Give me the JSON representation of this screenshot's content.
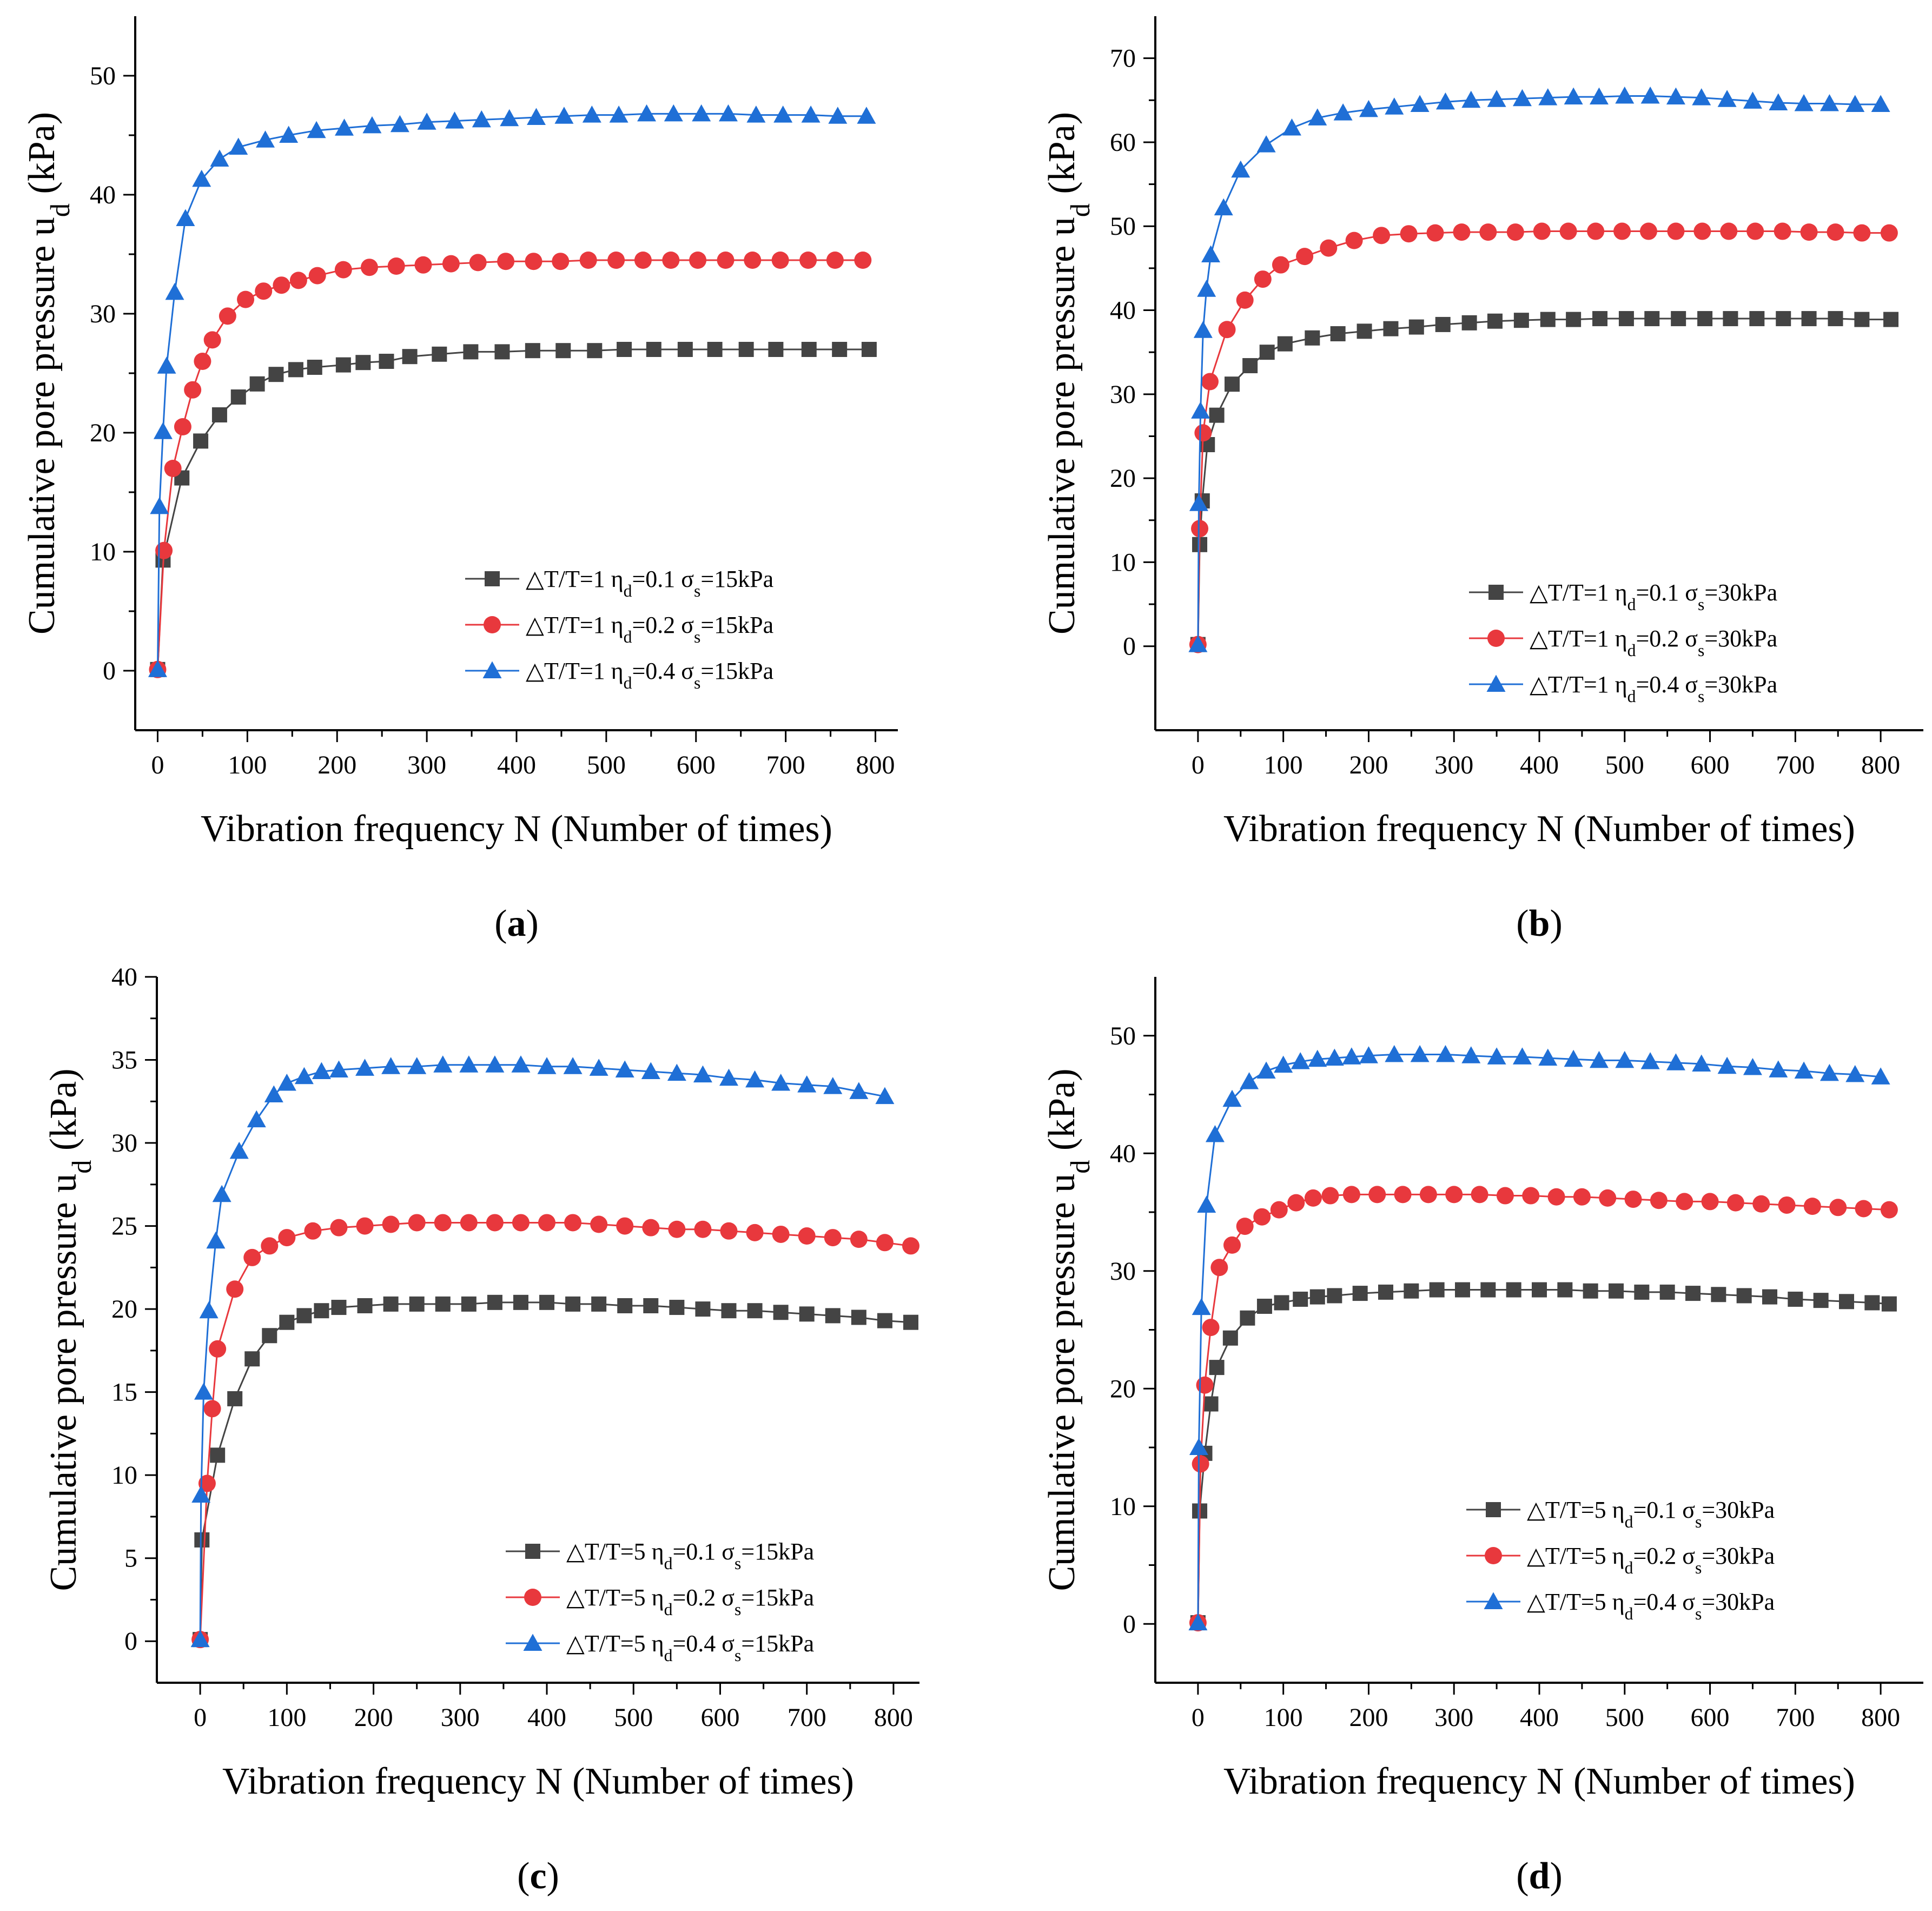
{
  "chart_data": [
    {
      "panel": "a",
      "type": "line",
      "xlabel": "Vibration frequency N (Number of times)",
      "ylabel": "Cumulative pore pressure u",
      "ylabel_sub": "d",
      "ylabel_unit": " (kPa)",
      "xlim": [
        -25,
        825
      ],
      "ylim": [
        -5,
        55
      ],
      "xticks": [
        0,
        100,
        200,
        300,
        400,
        500,
        600,
        700,
        800
      ],
      "yticks": [
        0,
        10,
        20,
        30,
        40,
        50
      ],
      "legend_position": "bottom-right",
      "series": [
        {
          "legend": {
            "pre": "△T/T=1 η",
            "sub1": "d",
            "mid": "=0.1 σ",
            "sub2": "s",
            "post": "=15kPa"
          },
          "marker": "square",
          "color": "#444444",
          "x": [
            0,
            6,
            27,
            48,
            69,
            90,
            111,
            132,
            154,
            175,
            207,
            229,
            255,
            281,
            314,
            349,
            384,
            418,
            452,
            487,
            520,
            553,
            588,
            621,
            656,
            689,
            726,
            760,
            793
          ],
          "y": [
            0.1,
            9.3,
            16.2,
            19.3,
            21.5,
            23.0,
            24.1,
            24.9,
            25.3,
            25.5,
            25.7,
            25.9,
            26.0,
            26.4,
            26.6,
            26.8,
            26.8,
            26.9,
            26.9,
            26.9,
            27.0,
            27.0,
            27.0,
            27.0,
            27.0,
            27.0,
            27.0,
            27.0,
            27.0
          ]
        },
        {
          "legend": {
            "pre": "△T/T=1 η",
            "sub1": "d",
            "mid": "=0.2 σ",
            "sub2": "s",
            "post": "=15kPa"
          },
          "marker": "circle",
          "color": "#e8383d",
          "x": [
            0,
            7,
            17,
            28,
            39,
            50,
            61,
            78,
            98,
            118,
            138,
            157,
            178,
            207,
            236,
            266,
            296,
            327,
            357,
            388,
            419,
            449,
            480,
            511,
            541,
            572,
            602,
            633,
            663,
            694,
            725,
            755,
            786
          ],
          "y": [
            0.1,
            10.1,
            17.0,
            20.5,
            23.6,
            26.0,
            27.8,
            29.8,
            31.2,
            31.9,
            32.4,
            32.8,
            33.2,
            33.7,
            33.9,
            34.0,
            34.1,
            34.2,
            34.3,
            34.4,
            34.4,
            34.4,
            34.5,
            34.5,
            34.5,
            34.5,
            34.5,
            34.5,
            34.5,
            34.5,
            34.5,
            34.5,
            34.5
          ]
        },
        {
          "legend": {
            "pre": "△T/T=1 η",
            "sub1": "d",
            "mid": "=0.4 σ",
            "sub2": "s",
            "post": "=15kPa"
          },
          "marker": "triangle",
          "color": "#1f6fd6",
          "x": [
            0,
            2,
            6,
            10,
            19,
            31,
            49,
            69,
            90,
            120,
            146,
            177,
            208,
            239,
            270,
            300,
            331,
            361,
            392,
            422,
            453,
            484,
            514,
            545,
            575,
            606,
            636,
            667,
            697,
            728,
            758,
            790
          ],
          "y": [
            0.1,
            13.8,
            20.1,
            25.6,
            31.8,
            38.0,
            41.3,
            43.0,
            44.0,
            44.6,
            45.0,
            45.4,
            45.6,
            45.8,
            45.9,
            46.1,
            46.2,
            46.3,
            46.4,
            46.5,
            46.6,
            46.7,
            46.7,
            46.8,
            46.8,
            46.8,
            46.8,
            46.7,
            46.7,
            46.7,
            46.6,
            46.6
          ]
        }
      ],
      "panel_label": "a"
    },
    {
      "panel": "b",
      "type": "line",
      "xlabel": "Vibration frequency N (Number of times)",
      "ylabel": "Cumulative pore pressure u",
      "ylabel_sub": "d",
      "ylabel_unit": " (kPa)",
      "xlim": [
        -50,
        850
      ],
      "ylim": [
        -10,
        75
      ],
      "xticks": [
        0,
        100,
        200,
        300,
        400,
        500,
        600,
        700,
        800
      ],
      "yticks": [
        0,
        10,
        20,
        30,
        40,
        50,
        60,
        70
      ],
      "legend_position": "bottom-right",
      "series": [
        {
          "legend": {
            "pre": "△T/T=1 η",
            "sub1": "d",
            "mid": "=0.1 σ",
            "sub2": "s",
            "post": "=30kPa"
          },
          "marker": "square",
          "color": "#444444",
          "x": [
            0,
            2,
            5,
            11,
            22,
            40,
            61,
            81,
            102,
            134,
            164,
            195,
            226,
            256,
            287,
            318,
            348,
            379,
            410,
            440,
            471,
            502,
            532,
            563,
            594,
            624,
            655,
            686,
            716,
            747,
            778,
            812
          ],
          "y": [
            0.2,
            12.1,
            17.3,
            24.0,
            27.5,
            31.2,
            33.4,
            35.0,
            36.0,
            36.7,
            37.2,
            37.5,
            37.8,
            38.0,
            38.3,
            38.5,
            38.7,
            38.8,
            38.9,
            38.9,
            39.0,
            39.0,
            39.0,
            39.0,
            39.0,
            39.0,
            39.0,
            39.0,
            39.0,
            39.0,
            38.9,
            38.9
          ]
        },
        {
          "legend": {
            "pre": "△T/T=1 η",
            "sub1": "d",
            "mid": "=0.2 σ",
            "sub2": "s",
            "post": "=30kPa"
          },
          "marker": "circle",
          "color": "#e8383d",
          "x": [
            0,
            2,
            6,
            14,
            34,
            55,
            76,
            97,
            125,
            153,
            183,
            215,
            247,
            278,
            309,
            340,
            372,
            403,
            434,
            466,
            497,
            528,
            560,
            591,
            622,
            653,
            685,
            716,
            747,
            778,
            810
          ],
          "y": [
            0.2,
            14.0,
            25.4,
            31.5,
            37.7,
            41.2,
            43.7,
            45.4,
            46.4,
            47.4,
            48.3,
            48.9,
            49.1,
            49.2,
            49.3,
            49.3,
            49.3,
            49.4,
            49.4,
            49.4,
            49.4,
            49.4,
            49.4,
            49.4,
            49.4,
            49.4,
            49.4,
            49.3,
            49.3,
            49.2,
            49.2
          ]
        },
        {
          "legend": {
            "pre": "△T/T=1 η",
            "sub1": "d",
            "mid": "=0.4 σ",
            "sub2": "s",
            "post": "=30kPa"
          },
          "marker": "triangle",
          "color": "#1f6fd6",
          "x": [
            0,
            1,
            3,
            6,
            10,
            15,
            30,
            50,
            80,
            110,
            140,
            170,
            200,
            230,
            260,
            290,
            320,
            350,
            380,
            410,
            440,
            470,
            500,
            530,
            560,
            590,
            620,
            650,
            680,
            710,
            740,
            770,
            800
          ],
          "y": [
            0.2,
            17.0,
            28.0,
            37.6,
            42.5,
            46.6,
            52.2,
            56.7,
            59.7,
            61.7,
            62.9,
            63.5,
            63.9,
            64.2,
            64.5,
            64.8,
            65.0,
            65.1,
            65.2,
            65.3,
            65.4,
            65.4,
            65.5,
            65.5,
            65.4,
            65.3,
            65.1,
            64.9,
            64.7,
            64.6,
            64.6,
            64.5,
            64.5
          ]
        }
      ],
      "panel_label": "b"
    },
    {
      "panel": "c",
      "type": "line",
      "xlabel": "Vibration frequency N (Number of times)",
      "ylabel": "Cumulative pore pressure u",
      "ylabel_sub": "d",
      "ylabel_unit": " (kPa)",
      "xlim": [
        -50,
        830
      ],
      "ylim": [
        -2.5,
        40
      ],
      "xticks": [
        0,
        100,
        200,
        300,
        400,
        500,
        600,
        700,
        800
      ],
      "yticks": [
        0,
        5,
        10,
        15,
        20,
        25,
        30,
        35,
        40
      ],
      "legend_position": "bottom-right",
      "series": [
        {
          "legend": {
            "pre": "△T/T=5 η",
            "sub1": "d",
            "mid": "=0.1 σ",
            "sub2": "s",
            "post": "=15kPa"
          },
          "marker": "square",
          "color": "#444444",
          "x": [
            0,
            2,
            20,
            40,
            60,
            80,
            100,
            120,
            140,
            160,
            190,
            220,
            250,
            280,
            310,
            340,
            370,
            400,
            430,
            460,
            490,
            520,
            550,
            580,
            610,
            640,
            670,
            700,
            730,
            760,
            790,
            820
          ],
          "y": [
            0.1,
            6.1,
            11.2,
            14.6,
            17.0,
            18.4,
            19.2,
            19.6,
            19.9,
            20.1,
            20.2,
            20.3,
            20.3,
            20.3,
            20.3,
            20.4,
            20.4,
            20.4,
            20.3,
            20.3,
            20.2,
            20.2,
            20.1,
            20.0,
            19.9,
            19.9,
            19.8,
            19.7,
            19.6,
            19.5,
            19.3,
            19.2
          ]
        },
        {
          "legend": {
            "pre": "△T/T=5 η",
            "sub1": "d",
            "mid": "=0.2 σ",
            "sub2": "s",
            "post": "=15kPa"
          },
          "marker": "circle",
          "color": "#e8383d",
          "x": [
            0,
            8,
            14,
            20,
            40,
            60,
            80,
            100,
            130,
            160,
            190,
            220,
            250,
            280,
            310,
            340,
            370,
            400,
            430,
            460,
            490,
            520,
            550,
            580,
            610,
            640,
            670,
            700,
            730,
            760,
            790,
            820
          ],
          "y": [
            0.1,
            9.5,
            14.0,
            17.6,
            21.2,
            23.1,
            23.8,
            24.3,
            24.7,
            24.9,
            25.0,
            25.1,
            25.2,
            25.2,
            25.2,
            25.2,
            25.2,
            25.2,
            25.2,
            25.1,
            25.0,
            24.9,
            24.8,
            24.8,
            24.7,
            24.6,
            24.5,
            24.4,
            24.3,
            24.2,
            24.0,
            23.8
          ]
        },
        {
          "legend": {
            "pre": "△T/T=5 η",
            "sub1": "d",
            "mid": "=0.4 σ",
            "sub2": "s",
            "post": "=15kPa"
          },
          "marker": "triangle",
          "color": "#1f6fd6",
          "x": [
            0,
            1,
            4,
            10,
            18,
            25,
            45,
            65,
            85,
            100,
            120,
            140,
            160,
            190,
            220,
            250,
            280,
            310,
            340,
            370,
            400,
            430,
            460,
            490,
            520,
            550,
            580,
            610,
            640,
            670,
            700,
            730,
            760,
            790
          ],
          "y": [
            0.1,
            8.8,
            15.0,
            19.9,
            24.1,
            26.9,
            29.5,
            31.4,
            32.9,
            33.6,
            34.0,
            34.3,
            34.4,
            34.5,
            34.6,
            34.6,
            34.7,
            34.7,
            34.7,
            34.7,
            34.6,
            34.6,
            34.5,
            34.4,
            34.3,
            34.2,
            34.1,
            33.9,
            33.8,
            33.6,
            33.5,
            33.4,
            33.1,
            32.8
          ]
        }
      ],
      "panel_label": "c"
    },
    {
      "panel": "d",
      "type": "line",
      "xlabel": "Vibration frequency N (Number of times)",
      "ylabel": "Cumulative pore pressure u",
      "ylabel_sub": "d",
      "ylabel_unit": " (kPa)",
      "xlim": [
        -50,
        850
      ],
      "ylim": [
        -5,
        55
      ],
      "xticks": [
        0,
        100,
        200,
        300,
        400,
        500,
        600,
        700,
        800
      ],
      "yticks": [
        0,
        10,
        20,
        30,
        40,
        50
      ],
      "legend_position": "bottom-right",
      "series": [
        {
          "legend": {
            "pre": "△T/T=5 η",
            "sub1": "d",
            "mid": "=0.1 σ",
            "sub2": "s",
            "post": "=30kPa"
          },
          "marker": "square",
          "color": "#444444",
          "x": [
            0,
            2,
            8,
            15,
            22,
            38,
            58,
            78,
            98,
            120,
            140,
            160,
            190,
            220,
            250,
            280,
            310,
            340,
            370,
            400,
            430,
            460,
            490,
            520,
            550,
            580,
            610,
            640,
            670,
            700,
            730,
            760,
            790,
            810
          ],
          "y": [
            0.1,
            9.6,
            14.5,
            18.7,
            21.8,
            24.3,
            26.0,
            27.0,
            27.3,
            27.6,
            27.8,
            27.9,
            28.1,
            28.2,
            28.3,
            28.4,
            28.4,
            28.4,
            28.4,
            28.4,
            28.4,
            28.3,
            28.3,
            28.2,
            28.2,
            28.1,
            28.0,
            27.9,
            27.8,
            27.6,
            27.5,
            27.4,
            27.3,
            27.2
          ]
        },
        {
          "legend": {
            "pre": "△T/T=5 η",
            "sub1": "d",
            "mid": "=0.2 σ",
            "sub2": "s",
            "post": "=30kPa"
          },
          "marker": "circle",
          "color": "#e8383d",
          "x": [
            0,
            3,
            8,
            15,
            25,
            40,
            55,
            75,
            95,
            115,
            135,
            155,
            180,
            210,
            240,
            270,
            300,
            330,
            360,
            390,
            420,
            450,
            480,
            510,
            540,
            570,
            600,
            630,
            660,
            690,
            720,
            750,
            780,
            810
          ],
          "y": [
            0.1,
            13.6,
            20.3,
            25.2,
            30.3,
            32.2,
            33.8,
            34.6,
            35.2,
            35.8,
            36.2,
            36.4,
            36.5,
            36.5,
            36.5,
            36.5,
            36.5,
            36.5,
            36.4,
            36.4,
            36.3,
            36.3,
            36.2,
            36.1,
            36.0,
            35.9,
            35.9,
            35.8,
            35.7,
            35.6,
            35.5,
            35.4,
            35.3,
            35.2
          ]
        },
        {
          "legend": {
            "pre": "△T/T=5 η",
            "sub1": "d",
            "mid": "=0.4 σ",
            "sub2": "s",
            "post": "=30kPa"
          },
          "marker": "triangle",
          "color": "#1f6fd6",
          "x": [
            0,
            1,
            4,
            10,
            20,
            40,
            60,
            80,
            100,
            120,
            140,
            160,
            180,
            200,
            230,
            260,
            290,
            320,
            350,
            380,
            410,
            440,
            470,
            500,
            530,
            560,
            590,
            620,
            650,
            680,
            710,
            740,
            770,
            800
          ],
          "y": [
            0.1,
            15.0,
            26.9,
            35.6,
            41.6,
            44.6,
            46.1,
            47.0,
            47.5,
            47.8,
            48.0,
            48.1,
            48.2,
            48.3,
            48.4,
            48.4,
            48.4,
            48.3,
            48.2,
            48.2,
            48.1,
            48.0,
            47.9,
            47.9,
            47.8,
            47.7,
            47.6,
            47.4,
            47.3,
            47.1,
            47.0,
            46.8,
            46.7,
            46.5
          ]
        }
      ],
      "panel_label": "d"
    }
  ]
}
